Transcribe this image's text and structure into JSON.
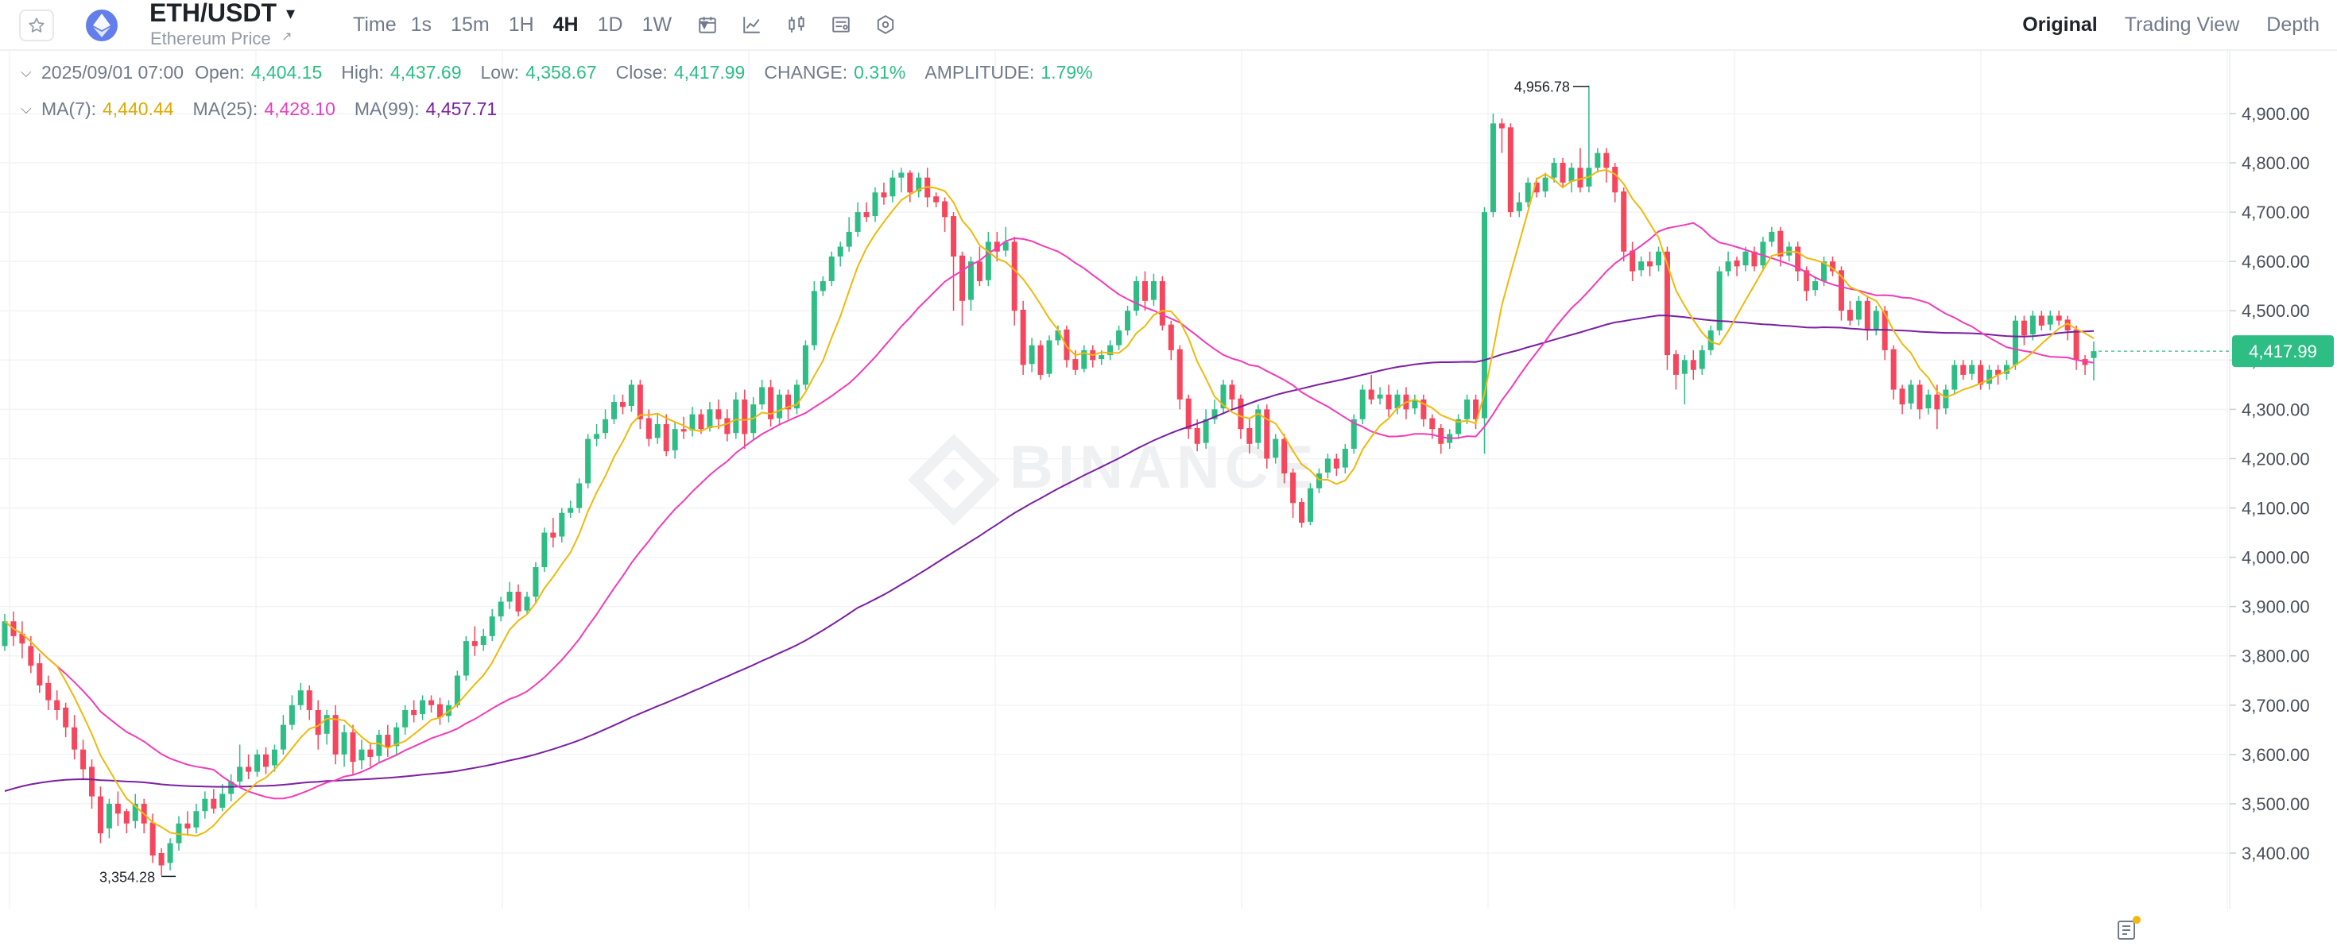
{
  "header": {
    "pair": "ETH/USDT",
    "subtitle": "Ethereum Price",
    "intervals": [
      "Time",
      "1s",
      "15m",
      "1H",
      "4H",
      "1D",
      "1W"
    ],
    "active_interval": "4H",
    "views": [
      "Original",
      "Trading View",
      "Depth"
    ],
    "active_view": "Original",
    "icons": [
      "star-icon",
      "ethereum-icon",
      "calendar-icon",
      "indicator-icon",
      "candle-type-icon",
      "settings-list-icon",
      "hexagon-settings-icon"
    ]
  },
  "legend": {
    "date": "2025/09/01 07:00",
    "open_label": "Open:",
    "open": "4,404.15",
    "high_label": "High:",
    "high": "4,437.69",
    "low_label": "Low:",
    "low": "4,358.67",
    "close_label": "Close:",
    "close": "4,417.99",
    "change_label": "CHANGE:",
    "change": "0.31%",
    "amplitude_label": "AMPLITUDE:",
    "amplitude": "1.79%",
    "ma7_label": "MA(7):",
    "ma7": "4,440.44",
    "ma25_label": "MA(25):",
    "ma25": "4,428.10",
    "ma99_label": "MA(99):",
    "ma99": "4,457.71"
  },
  "colors": {
    "up": "#2ebd85",
    "down": "#f6465d",
    "ma7": "#f0b90b",
    "ma25": "#f23bb9",
    "ma99": "#7b1fa2",
    "grid": "#f2f3f5",
    "axis_text": "#474d57",
    "current_price": "#2ebd85"
  },
  "chart_data": {
    "type": "candlestick",
    "symbol": "ETH/USDT",
    "interval": "4H",
    "ylim": [
      3330,
      4985
    ],
    "y_ticks": [
      "3,400.00",
      "3,500.00",
      "3,600.00",
      "3,700.00",
      "3,800.00",
      "3,900.00",
      "4,000.00",
      "4,100.00",
      "4,200.00",
      "4,300.00",
      "4,400.00",
      "4,500.00",
      "4,600.00",
      "4,700.00",
      "4,800.00",
      "4,900.00"
    ],
    "current_price": "4,417.99",
    "max_marker": "4,956.78",
    "min_marker": "3,354.28",
    "watermark": "BINANCE",
    "candles": [
      [
        3820,
        3870,
        3885,
        3810
      ],
      [
        3870,
        3840,
        3890,
        3820
      ],
      [
        3845,
        3825,
        3870,
        3795
      ],
      [
        3820,
        3780,
        3840,
        3765
      ],
      [
        3785,
        3740,
        3805,
        3725
      ],
      [
        3745,
        3710,
        3760,
        3690
      ],
      [
        3710,
        3690,
        3730,
        3670
      ],
      [
        3695,
        3655,
        3705,
        3635
      ],
      [
        3655,
        3610,
        3680,
        3590
      ],
      [
        3610,
        3570,
        3630,
        3550
      ],
      [
        3575,
        3515,
        3590,
        3490
      ],
      [
        3515,
        3440,
        3535,
        3420
      ],
      [
        3450,
        3500,
        3510,
        3430
      ],
      [
        3500,
        3480,
        3525,
        3455
      ],
      [
        3485,
        3460,
        3490,
        3440
      ],
      [
        3465,
        3500,
        3520,
        3450
      ],
      [
        3500,
        3460,
        3510,
        3440
      ],
      [
        3462,
        3395,
        3480,
        3380
      ],
      [
        3400,
        3375,
        3410,
        3354.28
      ],
      [
        3380,
        3420,
        3430,
        3365
      ],
      [
        3420,
        3460,
        3475,
        3405
      ],
      [
        3460,
        3450,
        3485,
        3435
      ],
      [
        3452,
        3485,
        3500,
        3440
      ],
      [
        3485,
        3510,
        3525,
        3470
      ],
      [
        3510,
        3490,
        3530,
        3480
      ],
      [
        3492,
        3520,
        3540,
        3485
      ],
      [
        3520,
        3545,
        3560,
        3505
      ],
      [
        3545,
        3575,
        3620,
        3535
      ],
      [
        3575,
        3565,
        3600,
        3550
      ],
      [
        3565,
        3600,
        3610,
        3555
      ],
      [
        3600,
        3575,
        3615,
        3560
      ],
      [
        3578,
        3610,
        3620,
        3565
      ],
      [
        3610,
        3660,
        3680,
        3600
      ],
      [
        3660,
        3700,
        3720,
        3650
      ],
      [
        3700,
        3730,
        3745,
        3690
      ],
      [
        3730,
        3690,
        3740,
        3670
      ],
      [
        3690,
        3640,
        3710,
        3610
      ],
      [
        3642,
        3680,
        3690,
        3620
      ],
      [
        3680,
        3600,
        3700,
        3580
      ],
      [
        3600,
        3645,
        3660,
        3575
      ],
      [
        3645,
        3585,
        3660,
        3560
      ],
      [
        3588,
        3610,
        3630,
        3570
      ],
      [
        3610,
        3595,
        3625,
        3575
      ],
      [
        3597,
        3640,
        3650,
        3585
      ],
      [
        3640,
        3615,
        3660,
        3595
      ],
      [
        3617,
        3655,
        3665,
        3600
      ],
      [
        3655,
        3690,
        3700,
        3640
      ],
      [
        3690,
        3680,
        3710,
        3665
      ],
      [
        3682,
        3710,
        3720,
        3670
      ],
      [
        3710,
        3700,
        3720,
        3685
      ],
      [
        3702,
        3675,
        3715,
        3660
      ],
      [
        3678,
        3700,
        3710,
        3665
      ],
      [
        3700,
        3760,
        3770,
        3695
      ],
      [
        3760,
        3830,
        3840,
        3750
      ],
      [
        3830,
        3820,
        3860,
        3800
      ],
      [
        3822,
        3840,
        3855,
        3810
      ],
      [
        3840,
        3880,
        3895,
        3830
      ],
      [
        3880,
        3910,
        3920,
        3870
      ],
      [
        3910,
        3930,
        3950,
        3895
      ],
      [
        3930,
        3890,
        3945,
        3880
      ],
      [
        3892,
        3920,
        3930,
        3885
      ],
      [
        3920,
        3980,
        3990,
        3905
      ],
      [
        3980,
        4050,
        4060,
        3970
      ],
      [
        4050,
        4040,
        4080,
        4020
      ],
      [
        4042,
        4090,
        4100,
        4030
      ],
      [
        4090,
        4100,
        4115,
        4080
      ],
      [
        4100,
        4150,
        4160,
        4090
      ],
      [
        4150,
        4240,
        4250,
        4140
      ],
      [
        4240,
        4250,
        4270,
        4225
      ],
      [
        4252,
        4280,
        4300,
        4240
      ],
      [
        4280,
        4315,
        4330,
        4270
      ],
      [
        4315,
        4305,
        4330,
        4290
      ],
      [
        4307,
        4350,
        4360,
        4295
      ],
      [
        4350,
        4280,
        4360,
        4260
      ],
      [
        4282,
        4240,
        4300,
        4225
      ],
      [
        4242,
        4270,
        4290,
        4230
      ],
      [
        4270,
        4215,
        4290,
        4205
      ],
      [
        4217,
        4260,
        4275,
        4200
      ],
      [
        4260,
        4255,
        4285,
        4240
      ],
      [
        4257,
        4290,
        4305,
        4245
      ],
      [
        4290,
        4260,
        4300,
        4250
      ],
      [
        4262,
        4300,
        4315,
        4255
      ],
      [
        4300,
        4280,
        4320,
        4260
      ],
      [
        4282,
        4250,
        4300,
        4235
      ],
      [
        4252,
        4320,
        4335,
        4240
      ],
      [
        4320,
        4250,
        4340,
        4220
      ],
      [
        4252,
        4310,
        4325,
        4240
      ],
      [
        4310,
        4345,
        4360,
        4300
      ],
      [
        4345,
        4280,
        4360,
        4265
      ],
      [
        4282,
        4330,
        4340,
        4270
      ],
      [
        4330,
        4300,
        4340,
        4280
      ],
      [
        4302,
        4350,
        4360,
        4290
      ],
      [
        4350,
        4430,
        4440,
        4340
      ],
      [
        4430,
        4540,
        4560,
        4420
      ],
      [
        4540,
        4560,
        4570,
        4530
      ],
      [
        4560,
        4610,
        4620,
        4550
      ],
      [
        4610,
        4630,
        4640,
        4590
      ],
      [
        4630,
        4660,
        4690,
        4620
      ],
      [
        4660,
        4700,
        4720,
        4650
      ],
      [
        4700,
        4690,
        4720,
        4680
      ],
      [
        4692,
        4740,
        4750,
        4680
      ],
      [
        4740,
        4730,
        4760,
        4715
      ],
      [
        4732,
        4770,
        4785,
        4720
      ],
      [
        4770,
        4780,
        4790,
        4740
      ],
      [
        4780,
        4740,
        4785,
        4720
      ],
      [
        4742,
        4770,
        4780,
        4730
      ],
      [
        4770,
        4730,
        4790,
        4710
      ],
      [
        4732,
        4720,
        4740,
        4710
      ],
      [
        4722,
        4690,
        4730,
        4660
      ],
      [
        4692,
        4610,
        4700,
        4500
      ],
      [
        4612,
        4520,
        4620,
        4470
      ],
      [
        4522,
        4600,
        4610,
        4500
      ],
      [
        4600,
        4560,
        4630,
        4550
      ],
      [
        4562,
        4640,
        4660,
        4550
      ],
      [
        4640,
        4620,
        4660,
        4600
      ],
      [
        4622,
        4640,
        4670,
        4610
      ],
      [
        4640,
        4500,
        4650,
        4470
      ],
      [
        4502,
        4390,
        4520,
        4370
      ],
      [
        4392,
        4430,
        4445,
        4375
      ],
      [
        4430,
        4370,
        4440,
        4360
      ],
      [
        4372,
        4440,
        4450,
        4365
      ],
      [
        4440,
        4460,
        4470,
        4430
      ],
      [
        4462,
        4400,
        4470,
        4385
      ],
      [
        4402,
        4380,
        4420,
        4370
      ],
      [
        4382,
        4420,
        4430,
        4375
      ],
      [
        4420,
        4400,
        4430,
        4385
      ],
      [
        4402,
        4410,
        4420,
        4390
      ],
      [
        4410,
        4430,
        4440,
        4400
      ],
      [
        4430,
        4460,
        4470,
        4420
      ],
      [
        4460,
        4500,
        4510,
        4450
      ],
      [
        4500,
        4560,
        4570,
        4490
      ],
      [
        4560,
        4520,
        4580,
        4500
      ],
      [
        4522,
        4560,
        4575,
        4510
      ],
      [
        4560,
        4470,
        4570,
        4460
      ],
      [
        4472,
        4420,
        4480,
        4400
      ],
      [
        4422,
        4320,
        4430,
        4300
      ],
      [
        4322,
        4260,
        4330,
        4240
      ],
      [
        4262,
        4230,
        4280,
        4215
      ],
      [
        4232,
        4280,
        4300,
        4220
      ],
      [
        4280,
        4300,
        4320,
        4270
      ],
      [
        4302,
        4350,
        4360,
        4290
      ],
      [
        4350,
        4320,
        4360,
        4300
      ],
      [
        4322,
        4260,
        4330,
        4240
      ],
      [
        4262,
        4230,
        4280,
        4210
      ],
      [
        4232,
        4300,
        4310,
        4220
      ],
      [
        4300,
        4200,
        4310,
        4180
      ],
      [
        4202,
        4240,
        4250,
        4190
      ],
      [
        4240,
        4170,
        4250,
        4150
      ],
      [
        4172,
        4110,
        4180,
        4080
      ],
      [
        4112,
        4070,
        4120,
        4060
      ],
      [
        4072,
        4140,
        4150,
        4065
      ],
      [
        4140,
        4170,
        4180,
        4130
      ],
      [
        4172,
        4200,
        4210,
        4160
      ],
      [
        4200,
        4180,
        4210,
        4165
      ],
      [
        4182,
        4220,
        4230,
        4170
      ],
      [
        4220,
        4280,
        4290,
        4210
      ],
      [
        4280,
        4340,
        4350,
        4270
      ],
      [
        4340,
        4320,
        4370,
        4310
      ],
      [
        4322,
        4330,
        4345,
        4310
      ],
      [
        4330,
        4300,
        4350,
        4285
      ],
      [
        4302,
        4330,
        4340,
        4290
      ],
      [
        4330,
        4300,
        4345,
        4280
      ],
      [
        4302,
        4320,
        4330,
        4290
      ],
      [
        4320,
        4280,
        4330,
        4265
      ],
      [
        4282,
        4260,
        4290,
        4240
      ],
      [
        4262,
        4230,
        4270,
        4210
      ],
      [
        4232,
        4250,
        4260,
        4220
      ],
      [
        4250,
        4280,
        4290,
        4240
      ],
      [
        4280,
        4320,
        4330,
        4270
      ],
      [
        4320,
        4280,
        4330,
        4260
      ],
      [
        4282,
        4700,
        4710,
        4210
      ],
      [
        4700,
        4880,
        4900,
        4690
      ],
      [
        4880,
        4870,
        4890,
        4820
      ],
      [
        4872,
        4700,
        4880,
        4690
      ],
      [
        4702,
        4720,
        4740,
        4690
      ],
      [
        4720,
        4760,
        4770,
        4710
      ],
      [
        4760,
        4740,
        4770,
        4730
      ],
      [
        4742,
        4770,
        4780,
        4730
      ],
      [
        4770,
        4800,
        4810,
        4760
      ],
      [
        4800,
        4760,
        4810,
        4750
      ],
      [
        4762,
        4790,
        4800,
        4740
      ],
      [
        4790,
        4750,
        4830,
        4740
      ],
      [
        4752,
        4790,
        4956.78,
        4740
      ],
      [
        4790,
        4820,
        4830,
        4780
      ],
      [
        4820,
        4790,
        4830,
        4760
      ],
      [
        4792,
        4740,
        4800,
        4720
      ],
      [
        4742,
        4620,
        4750,
        4600
      ],
      [
        4622,
        4580,
        4640,
        4560
      ],
      [
        4582,
        4600,
        4610,
        4570
      ],
      [
        4600,
        4590,
        4620,
        4570
      ],
      [
        4592,
        4620,
        4630,
        4580
      ],
      [
        4620,
        4410,
        4630,
        4380
      ],
      [
        4412,
        4370,
        4420,
        4340
      ],
      [
        4372,
        4400,
        4410,
        4310
      ],
      [
        4400,
        4380,
        4420,
        4360
      ],
      [
        4382,
        4420,
        4430,
        4370
      ],
      [
        4420,
        4460,
        4470,
        4410
      ],
      [
        4460,
        4580,
        4590,
        4450
      ],
      [
        4580,
        4600,
        4620,
        4570
      ],
      [
        4602,
        4590,
        4610,
        4570
      ],
      [
        4592,
        4620,
        4630,
        4580
      ],
      [
        4620,
        4590,
        4630,
        4580
      ],
      [
        4592,
        4640,
        4650,
        4580
      ],
      [
        4640,
        4660,
        4670,
        4630
      ],
      [
        4662,
        4610,
        4670,
        4590
      ],
      [
        4612,
        4630,
        4640,
        4600
      ],
      [
        4630,
        4580,
        4640,
        4560
      ],
      [
        4582,
        4540,
        4590,
        4520
      ],
      [
        4542,
        4560,
        4570,
        4530
      ],
      [
        4560,
        4600,
        4610,
        4550
      ],
      [
        4600,
        4580,
        4610,
        4570
      ],
      [
        4582,
        4500,
        4590,
        4480
      ],
      [
        4502,
        4480,
        4520,
        4470
      ],
      [
        4482,
        4520,
        4530,
        4470
      ],
      [
        4520,
        4460,
        4530,
        4440
      ],
      [
        4462,
        4500,
        4510,
        4450
      ],
      [
        4500,
        4420,
        4510,
        4400
      ],
      [
        4422,
        4340,
        4430,
        4320
      ],
      [
        4342,
        4310,
        4350,
        4290
      ],
      [
        4312,
        4350,
        4360,
        4300
      ],
      [
        4350,
        4300,
        4360,
        4280
      ],
      [
        4302,
        4330,
        4340,
        4290
      ],
      [
        4330,
        4300,
        4350,
        4260
      ],
      [
        4302,
        4340,
        4350,
        4290
      ],
      [
        4340,
        4390,
        4400,
        4330
      ],
      [
        4390,
        4370,
        4400,
        4360
      ],
      [
        4372,
        4390,
        4400,
        4360
      ],
      [
        4390,
        4350,
        4400,
        4340
      ],
      [
        4352,
        4380,
        4390,
        4340
      ],
      [
        4380,
        4370,
        4390,
        4350
      ],
      [
        4372,
        4390,
        4400,
        4360
      ],
      [
        4390,
        4480,
        4490,
        4380
      ],
      [
        4480,
        4450,
        4490,
        4430
      ],
      [
        4452,
        4490,
        4500,
        4440
      ],
      [
        4490,
        4470,
        4500,
        4460
      ],
      [
        4472,
        4490,
        4500,
        4460
      ],
      [
        4490,
        4480,
        4500,
        4470
      ],
      [
        4482,
        4460,
        4490,
        4440
      ],
      [
        4462,
        4400,
        4470,
        4380
      ],
      [
        4402,
        4390,
        4410,
        4370
      ],
      [
        4404.15,
        4417.99,
        4437.69,
        4358.67
      ]
    ]
  }
}
